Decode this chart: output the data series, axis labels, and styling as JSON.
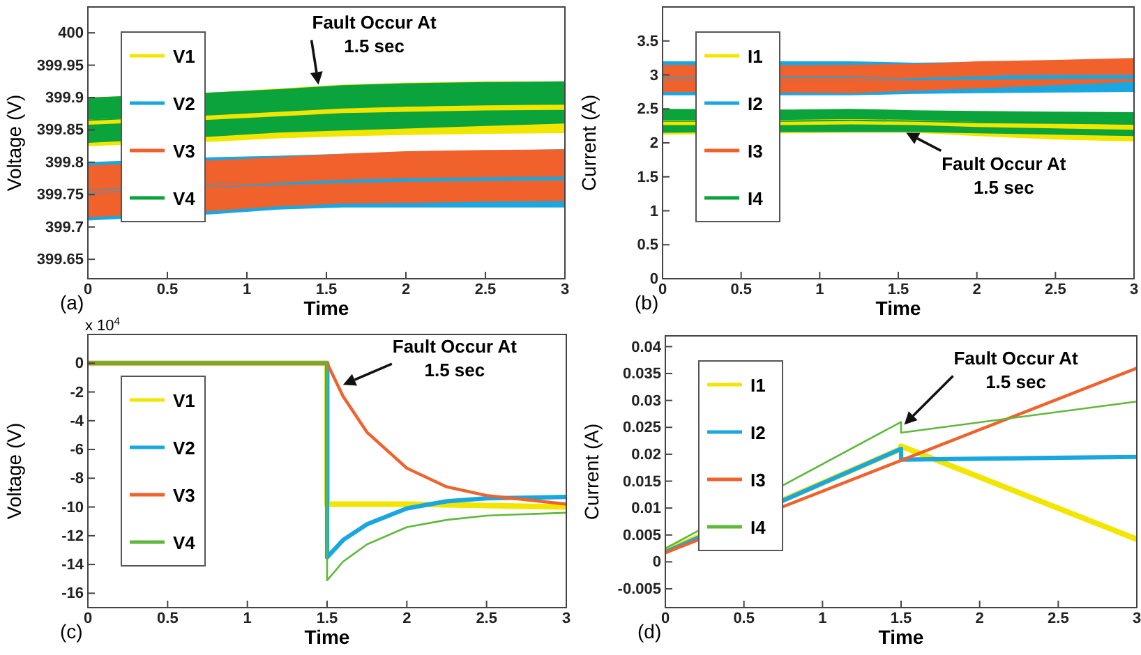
{
  "chart_data": [
    {
      "type": "line",
      "xlabel": "Time",
      "ylabel": "Voltage (V)",
      "xlim": [
        0,
        3
      ],
      "xticks": [
        0,
        0.5,
        1,
        1.5,
        2,
        2.5,
        3
      ],
      "ylim": [
        399.62,
        400.04
      ],
      "yticks": [
        399.65,
        399.7,
        399.75,
        399.8,
        399.85,
        399.9,
        399.95,
        400
      ],
      "legend": "top left",
      "grid": false,
      "annotations": [
        {
          "text": "Fault Occur At 1.5 sec",
          "x": 1.45,
          "y": 399.92
        },
        "(a)"
      ],
      "series": [
        {
          "name": "V1",
          "color": "#f2e600",
          "x": [
            0,
            0.8,
            1.2,
            1.6,
            2,
            2.5,
            3
          ],
          "values": [
            399.862,
            399.87,
            399.875,
            399.88,
            399.882,
            399.884,
            399.885
          ],
          "lower": [
            399.825,
            399.832,
            399.837,
            399.84,
            399.842,
            399.844,
            399.845
          ],
          "upper": [
            399.9,
            399.908,
            399.914,
            399.92,
            399.923,
            399.925,
            399.925
          ]
        },
        {
          "name": "V2",
          "color": "#1aa7e0",
          "x": [
            0,
            0.8,
            1.2,
            1.6,
            2,
            2.5,
            3
          ],
          "values": [
            399.755,
            399.764,
            399.768,
            399.771,
            399.773,
            399.774,
            399.775
          ],
          "lower": [
            399.71,
            399.72,
            399.727,
            399.73,
            399.73,
            399.73,
            399.73
          ],
          "upper": [
            399.8,
            399.808,
            399.81,
            399.813,
            399.816,
            399.818,
            399.82
          ]
        },
        {
          "name": "V3",
          "color": "#f0612c",
          "x": [
            0,
            0.8,
            1.2,
            1.6,
            2,
            2.5,
            3
          ],
          "values": [
            399.755,
            399.764,
            399.77,
            399.775,
            399.777,
            399.779,
            399.78
          ],
          "lower": [
            399.715,
            399.725,
            399.732,
            399.736,
            399.737,
            399.739,
            399.74
          ],
          "upper": [
            399.795,
            399.803,
            399.808,
            399.813,
            399.817,
            399.819,
            399.82
          ]
        },
        {
          "name": "V4",
          "color": "#0aa33c",
          "x": [
            0,
            0.8,
            1.2,
            1.6,
            2,
            2.5,
            3
          ],
          "values": [
            399.865,
            399.874,
            399.879,
            399.884,
            399.887,
            399.89,
            399.892
          ],
          "lower": [
            399.83,
            399.84,
            399.846,
            399.849,
            399.852,
            399.856,
            399.86
          ],
          "upper": [
            399.9,
            399.908,
            399.913,
            399.919,
            399.922,
            399.924,
            399.925
          ]
        }
      ]
    },
    {
      "type": "line",
      "xlabel": "Time",
      "ylabel": "Current (A)",
      "xlim": [
        0,
        3
      ],
      "xticks": [
        0,
        0.5,
        1,
        1.5,
        2,
        2.5,
        3
      ],
      "ylim": [
        0,
        4
      ],
      "yticks": [
        0,
        0.5,
        1,
        1.5,
        2,
        2.5,
        3,
        3.5
      ],
      "legend": "top left",
      "grid": false,
      "annotations": [
        {
          "text": "Fault Occur At 1.5 sec",
          "x": 1.55,
          "y": 2.15
        },
        "(b)"
      ],
      "series": [
        {
          "name": "I1",
          "color": "#f2e600",
          "x": [
            0,
            0.8,
            1.2,
            1.6,
            2,
            2.5,
            3
          ],
          "values": [
            2.3,
            2.3,
            2.31,
            2.3,
            2.27,
            2.25,
            2.23
          ],
          "lower": [
            2.12,
            2.14,
            2.15,
            2.15,
            2.1,
            2.05,
            2.02
          ],
          "upper": [
            2.48,
            2.47,
            2.47,
            2.47,
            2.46,
            2.45,
            2.45
          ]
        },
        {
          "name": "I2",
          "color": "#1aa7e0",
          "x": [
            0,
            0.8,
            1.2,
            1.6,
            2,
            2.5,
            3
          ],
          "values": [
            2.95,
            2.95,
            2.95,
            2.95,
            2.96,
            2.97,
            2.97
          ],
          "lower": [
            2.7,
            2.7,
            2.7,
            2.72,
            2.73,
            2.74,
            2.75
          ],
          "upper": [
            3.2,
            3.2,
            3.2,
            3.18,
            3.19,
            3.2,
            3.2
          ]
        },
        {
          "name": "I3",
          "color": "#f0612c",
          "x": [
            0,
            0.8,
            1.2,
            1.6,
            2,
            2.5,
            3
          ],
          "values": [
            2.95,
            2.94,
            2.94,
            2.97,
            3,
            3.04,
            3.08
          ],
          "lower": [
            2.75,
            2.74,
            2.73,
            2.77,
            2.8,
            2.85,
            2.9
          ],
          "upper": [
            3.15,
            3.14,
            3.15,
            3.16,
            3.2,
            3.22,
            3.25
          ]
        },
        {
          "name": "I4",
          "color": "#0aa33c",
          "x": [
            0,
            0.8,
            1.2,
            1.6,
            2,
            2.5,
            3
          ],
          "values": [
            2.32,
            2.32,
            2.33,
            2.32,
            2.3,
            2.29,
            2.28
          ],
          "lower": [
            2.15,
            2.16,
            2.16,
            2.16,
            2.14,
            2.12,
            2.1
          ],
          "upper": [
            2.5,
            2.49,
            2.5,
            2.48,
            2.47,
            2.46,
            2.45
          ]
        }
      ]
    },
    {
      "type": "line",
      "xlabel": "Time",
      "ylabel": "Voltage (V)",
      "xlim": [
        0,
        3
      ],
      "xticks": [
        0,
        0.5,
        1,
        1.5,
        2,
        2.5,
        3
      ],
      "ylim": [
        -17,
        2
      ],
      "yticks": [
        0,
        -2,
        -4,
        -6,
        -8,
        -10,
        -12,
        -14,
        -16
      ],
      "legend": "left",
      "grid": false,
      "annotations": [
        {
          "text": "Fault Occur At 1.5 sec",
          "x": 1.6,
          "y": -1.5
        },
        "(c)",
        "x 10$^{4}$"
      ],
      "series": [
        {
          "name": "V1",
          "color": "#f2e600",
          "x": [
            0,
            1.5,
            1.5,
            2,
            2.5,
            3
          ],
          "values": [
            0,
            0,
            -9.8,
            -9.8,
            -9.9,
            -10
          ]
        },
        {
          "name": "V2",
          "color": "#1aa7e0",
          "x": [
            0,
            1.5,
            1.5,
            1.6,
            1.75,
            2,
            2.25,
            2.5,
            3
          ],
          "values": [
            0,
            0,
            -13.5,
            -12.3,
            -11.2,
            -10.1,
            -9.6,
            -9.4,
            -9.3
          ]
        },
        {
          "name": "V3",
          "color": "#f0612c",
          "x": [
            0,
            1.5,
            1.6,
            1.75,
            2,
            2.25,
            2.5,
            2.75,
            3
          ],
          "values": [
            0,
            0,
            -2.3,
            -4.8,
            -7.3,
            -8.6,
            -9.2,
            -9.5,
            -9.8
          ]
        },
        {
          "name": "V4",
          "color": "#5fb83a",
          "x": [
            0,
            1.5,
            1.5,
            1.6,
            1.75,
            2,
            2.25,
            2.5,
            3
          ],
          "values": [
            0,
            0,
            -15.1,
            -13.8,
            -12.6,
            -11.4,
            -10.9,
            -10.6,
            -10.4
          ]
        }
      ]
    },
    {
      "type": "line",
      "xlabel": "Time",
      "ylabel": "Current (A)",
      "xlim": [
        0,
        3
      ],
      "xticks": [
        0,
        0.5,
        1,
        1.5,
        2,
        2.5,
        3
      ],
      "ylim": [
        -0.0085,
        0.042
      ],
      "yticks": [
        -0.005,
        0,
        0.005,
        0.01,
        0.015,
        0.02,
        0.025,
        0.03,
        0.035,
        0.04
      ],
      "legend": "top left",
      "grid": false,
      "annotations": [
        {
          "text": "Fault Occur At 1.5 sec",
          "x": 1.52,
          "y": 0.0255
        },
        "(d)"
      ],
      "series": [
        {
          "name": "I1",
          "color": "#f2e600",
          "x": [
            0,
            1.5,
            1.5,
            3
          ],
          "values": [
            0.002,
            0.021,
            0.0215,
            0.0042
          ]
        },
        {
          "name": "I2",
          "color": "#1aa7e0",
          "x": [
            0,
            1.5,
            1.5,
            3
          ],
          "values": [
            0.0018,
            0.021,
            0.019,
            0.0195
          ]
        },
        {
          "name": "I3",
          "color": "#f0612c",
          "x": [
            0,
            3
          ],
          "values": [
            0.0017,
            0.036
          ]
        },
        {
          "name": "I4",
          "color": "#5fb83a",
          "x": [
            0,
            1.5,
            1.5,
            3
          ],
          "values": [
            0.0025,
            0.026,
            0.024,
            0.0298
          ]
        }
      ]
    }
  ]
}
